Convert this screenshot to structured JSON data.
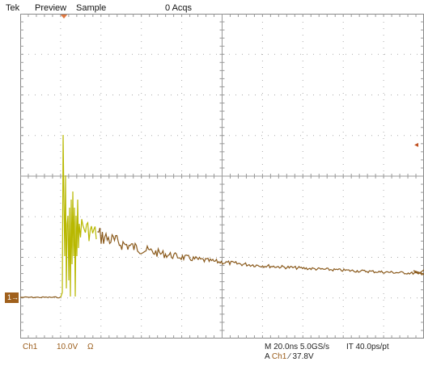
{
  "header": {
    "brand": "Tek",
    "mode": "Preview",
    "acquisition_mode": "Sample",
    "acquisitions": "0 Acqs"
  },
  "channel": {
    "marker_label": "1",
    "label": "Ch1",
    "scale": "10.0V",
    "coupling": "Ω"
  },
  "horizontal": {
    "timebase": "M 20.0ns 5.0GS/s",
    "interpolation": "IT 40.0ps/pt"
  },
  "trigger": {
    "prefix": "A",
    "source": "Ch1",
    "slope": "∕",
    "level": "37.8V",
    "level_arrow": "◂"
  },
  "display": {
    "graticule_color": "#aaaaaa",
    "trace_color": "#8a5a1c",
    "ringing_color": "#b8b800",
    "ch1_color": "#a0601c"
  }
}
